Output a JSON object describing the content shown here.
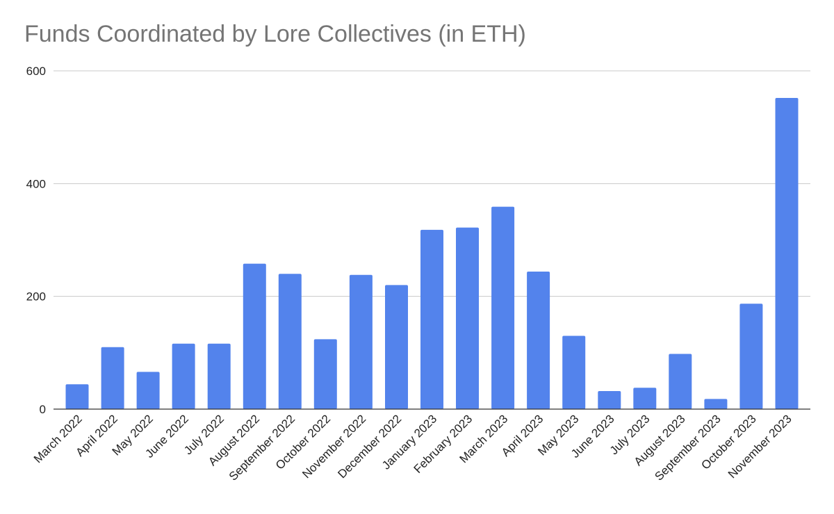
{
  "chart_data": {
    "type": "bar",
    "title": "Funds Coordinated by Lore Collectives (in ETH)",
    "xlabel": "",
    "ylabel": "",
    "ylim": [
      0,
      600
    ],
    "yticks": [
      0,
      200,
      400,
      600
    ],
    "grid": true,
    "legend": "none",
    "bar_color": "#5383EC",
    "grid_color": "#C8C8C8",
    "axis_color": "#333333",
    "title_color": "#757575",
    "categories": [
      "March 2022",
      "April 2022",
      "May 2022",
      "June 2022",
      "July 2022",
      "August 2022",
      "September 2022",
      "October 2022",
      "November 2022",
      "December 2022",
      "January 2023",
      "February 2023",
      "March 2023",
      "April 2023",
      "May 2023",
      "June 2023",
      "July 2023",
      "August 2023",
      "September 2023",
      "October 2023",
      "November 2023"
    ],
    "values": [
      44,
      110,
      66,
      116,
      116,
      258,
      240,
      124,
      238,
      220,
      318,
      322,
      359,
      244,
      130,
      32,
      38,
      98,
      18,
      187,
      552
    ]
  }
}
